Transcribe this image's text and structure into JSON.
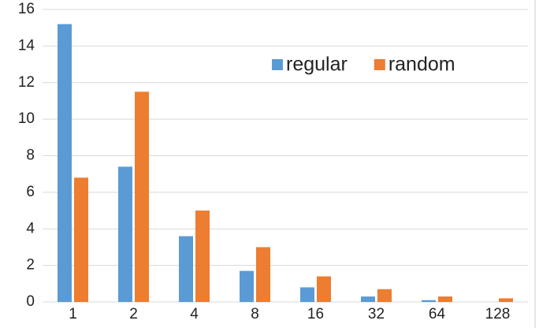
{
  "chart_data": {
    "type": "bar",
    "categories": [
      "1",
      "2",
      "4",
      "8",
      "16",
      "32",
      "64",
      "128"
    ],
    "series": [
      {
        "name": "regular",
        "color": "#5b9bd5",
        "values": [
          15.2,
          7.4,
          3.6,
          1.7,
          0.8,
          0.3,
          0.1,
          0
        ]
      },
      {
        "name": "random",
        "color": "#ed7d31",
        "values": [
          6.8,
          11.5,
          5.0,
          3.0,
          1.4,
          0.7,
          0.3,
          0.2
        ]
      }
    ],
    "ylim": [
      0,
      16
    ],
    "yticks": [
      0,
      2,
      4,
      6,
      8,
      10,
      12,
      14,
      16
    ],
    "grid": true,
    "legend": "top-right"
  }
}
